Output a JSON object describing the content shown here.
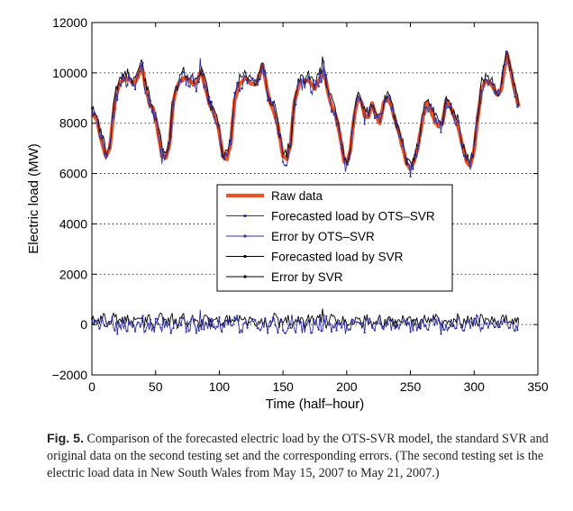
{
  "chart_data": {
    "type": "line",
    "xlabel": "Time (half–hour)",
    "ylabel": "Electric load (MW)",
    "xlim": [
      0,
      350
    ],
    "ylim": [
      -2000,
      12000
    ],
    "xticks": [
      0,
      50,
      100,
      150,
      200,
      250,
      300,
      350
    ],
    "yticks": [
      -2000,
      0,
      2000,
      4000,
      6000,
      8000,
      10000,
      12000
    ],
    "ytick_labels": [
      "−2000",
      "0",
      "2000",
      "4000",
      "6000",
      "8000",
      "10000",
      "12000"
    ],
    "grid": "horizontal-dotted",
    "legend_placement": "center",
    "n_points": 336,
    "series": [
      {
        "name": "Raw data",
        "color": "#e8552a",
        "style": "thick",
        "key_points": [
          [
            0,
            8400
          ],
          [
            4,
            8100
          ],
          [
            8,
            7200
          ],
          [
            11,
            6700
          ],
          [
            14,
            7000
          ],
          [
            18,
            8800
          ],
          [
            21,
            9500
          ],
          [
            25,
            9800
          ],
          [
            30,
            9700
          ],
          [
            33,
            9500
          ],
          [
            36,
            9800
          ],
          [
            39,
            10300
          ],
          [
            42,
            9500
          ],
          [
            45,
            8800
          ],
          [
            48,
            8600
          ],
          [
            51,
            7900
          ],
          [
            55,
            6700
          ],
          [
            58,
            6600
          ],
          [
            61,
            7200
          ],
          [
            64,
            8900
          ],
          [
            68,
            9600
          ],
          [
            73,
            9800
          ],
          [
            77,
            9700
          ],
          [
            80,
            9500
          ],
          [
            83,
            9700
          ],
          [
            86,
            10100
          ],
          [
            89,
            9400
          ],
          [
            92,
            8800
          ],
          [
            95,
            8500
          ],
          [
            99,
            7900
          ],
          [
            103,
            6700
          ],
          [
            106,
            6600
          ],
          [
            109,
            7200
          ],
          [
            112,
            8900
          ],
          [
            116,
            9600
          ],
          [
            121,
            9800
          ],
          [
            125,
            9600
          ],
          [
            128,
            9500
          ],
          [
            130,
            9700
          ],
          [
            134,
            10300
          ],
          [
            137,
            9500
          ],
          [
            140,
            8800
          ],
          [
            143,
            8400
          ],
          [
            146,
            7900
          ],
          [
            150,
            6700
          ],
          [
            153,
            6600
          ],
          [
            156,
            7200
          ],
          [
            159,
            8900
          ],
          [
            163,
            9600
          ],
          [
            168,
            9700
          ],
          [
            172,
            9600
          ],
          [
            175,
            9400
          ],
          [
            177,
            9600
          ],
          [
            182,
            10100
          ],
          [
            185,
            9300
          ],
          [
            188,
            8700
          ],
          [
            191,
            8400
          ],
          [
            194,
            7700
          ],
          [
            198,
            6500
          ],
          [
            200,
            6400
          ],
          [
            203,
            7000
          ],
          [
            206,
            8300
          ],
          [
            209,
            9000
          ],
          [
            212,
            8800
          ],
          [
            214,
            8300
          ],
          [
            217,
            8200
          ],
          [
            220,
            8800
          ],
          [
            223,
            8300
          ],
          [
            226,
            8000
          ],
          [
            229,
            8800
          ],
          [
            232,
            9000
          ],
          [
            235,
            8700
          ],
          [
            237,
            8300
          ],
          [
            240,
            7800
          ],
          [
            243,
            7200
          ],
          [
            247,
            6400
          ],
          [
            250,
            6200
          ],
          [
            253,
            6500
          ],
          [
            256,
            7100
          ],
          [
            260,
            8300
          ],
          [
            263,
            8800
          ],
          [
            266,
            8500
          ],
          [
            269,
            8100
          ],
          [
            272,
            7900
          ],
          [
            275,
            8000
          ],
          [
            278,
            8900
          ],
          [
            281,
            8700
          ],
          [
            284,
            8300
          ],
          [
            287,
            7900
          ],
          [
            290,
            7300
          ],
          [
            294,
            6500
          ],
          [
            297,
            6300
          ],
          [
            300,
            6900
          ],
          [
            303,
            8300
          ],
          [
            306,
            9400
          ],
          [
            309,
            9700
          ],
          [
            312,
            9600
          ],
          [
            315,
            9400
          ],
          [
            318,
            9100
          ],
          [
            321,
            9300
          ],
          [
            324,
            10200
          ],
          [
            326,
            10700
          ],
          [
            329,
            10000
          ],
          [
            332,
            9300
          ],
          [
            335,
            8600
          ]
        ]
      },
      {
        "name": "Forecasted load by OTS–SVR",
        "color": "#3030a0",
        "style": "dot-marker"
      },
      {
        "name": "Error by OTS–SVR",
        "color": "#3030a0",
        "style": "dot-marker",
        "range": [
          -600,
          600
        ]
      },
      {
        "name": "Forecasted load by SVR",
        "color": "#000000",
        "style": "dot-marker"
      },
      {
        "name": "Error by SVR",
        "color": "#000000",
        "style": "dot-marker",
        "range": [
          -500,
          500
        ]
      }
    ]
  },
  "caption": {
    "label": "Fig. 5.",
    "text": " Comparison of the forecasted electric load by the OTS-SVR model, the standard SVR and original data on the second testing set and the corresponding errors. (The second testing set is the electric load data in New South Wales from May 15, 2007 to May 21, 2007.)"
  },
  "colors": {
    "raw": "#e8552a",
    "ots": "#3030a0",
    "svr": "#000000"
  }
}
